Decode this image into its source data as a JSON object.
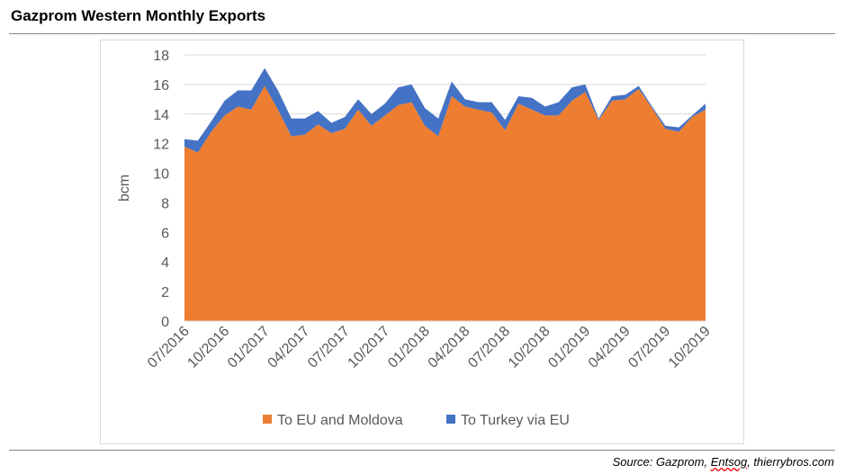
{
  "title": "Gazprom Western Monthly Exports",
  "source": {
    "prefix": "Source: Gazprom, ",
    "entsog": "Entsog",
    ",suffix": "",
    "suffix": ", thierrybros.com"
  },
  "chart_data": {
    "type": "area",
    "stacked": true,
    "title": "",
    "xlabel": "",
    "ylabel": "bcm",
    "ylim": [
      0,
      18
    ],
    "yticks": [
      0,
      2,
      4,
      6,
      8,
      10,
      12,
      14,
      16,
      18
    ],
    "grid": true,
    "legend": "bottom",
    "x": [
      "07/2016",
      "08/2016",
      "09/2016",
      "10/2016",
      "11/2016",
      "12/2016",
      "01/2017",
      "02/2017",
      "03/2017",
      "04/2017",
      "05/2017",
      "06/2017",
      "07/2017",
      "08/2017",
      "09/2017",
      "10/2017",
      "11/2017",
      "12/2017",
      "01/2018",
      "02/2018",
      "03/2018",
      "04/2018",
      "05/2018",
      "06/2018",
      "07/2018",
      "08/2018",
      "09/2018",
      "10/2018",
      "11/2018",
      "12/2018",
      "01/2019",
      "02/2019",
      "03/2019",
      "04/2019",
      "05/2019",
      "06/2019",
      "07/2019",
      "08/2019",
      "09/2019",
      "10/2019"
    ],
    "xtick_labels": [
      "07/2016",
      "10/2016",
      "01/2017",
      "04/2017",
      "07/2017",
      "10/2017",
      "01/2018",
      "04/2018",
      "07/2018",
      "10/2018",
      "01/2019",
      "04/2019",
      "07/2019",
      "10/2019"
    ],
    "series": [
      {
        "name": "To EU and Moldova",
        "color": "#ED7D31",
        "values": [
          11.8,
          11.4,
          12.8,
          13.9,
          14.5,
          14.3,
          15.9,
          14.3,
          12.5,
          12.6,
          13.3,
          12.7,
          13.0,
          14.3,
          13.2,
          13.9,
          14.6,
          14.8,
          13.2,
          12.5,
          15.2,
          14.5,
          14.3,
          14.1,
          12.9,
          14.7,
          14.3,
          13.9,
          13.9,
          14.9,
          15.5,
          13.6,
          14.9,
          15.0,
          15.7,
          14.4,
          13.0,
          12.8,
          13.8,
          14.3
        ]
      },
      {
        "name": "To Turkey via EU",
        "color": "#4472C4",
        "values": [
          0.5,
          0.8,
          0.7,
          1.0,
          1.1,
          1.3,
          1.2,
          1.3,
          1.2,
          1.1,
          0.9,
          0.7,
          0.8,
          0.7,
          0.8,
          0.8,
          1.2,
          1.2,
          1.2,
          1.2,
          1.0,
          0.5,
          0.5,
          0.7,
          0.7,
          0.5,
          0.8,
          0.6,
          0.9,
          0.9,
          0.5,
          0.1,
          0.3,
          0.3,
          0.2,
          0.1,
          0.2,
          0.3,
          0.1,
          0.4
        ]
      }
    ]
  }
}
